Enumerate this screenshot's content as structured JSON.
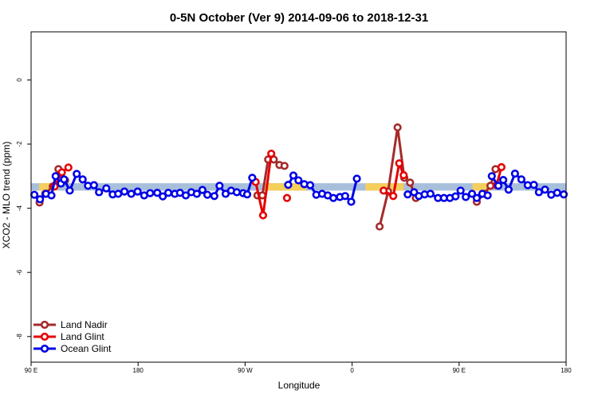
{
  "chart_data": {
    "type": "line",
    "title": "0-5N October (Ver 9)   2014-09-06 to 2018-12-31",
    "xlabel": "Longitude",
    "ylabel": "XCO2 - MLO trend (ppm)",
    "xlim": [
      -90,
      270
    ],
    "ylim": [
      -8.8,
      1.5
    ],
    "x_ticks": [
      {
        "value": -90,
        "label": "90 E"
      },
      {
        "value": -18,
        "label": "180"
      },
      {
        "value": 54,
        "label": "90 W"
      },
      {
        "value": 126,
        "label": "0"
      },
      {
        "value": 198,
        "label": "90 E"
      },
      {
        "value": 270,
        "label": "180"
      }
    ],
    "y_ticks": [
      {
        "value": 0,
        "label": "0"
      },
      {
        "value": -2,
        "label": "-2"
      },
      {
        "value": -4,
        "label": "-4"
      },
      {
        "value": -6,
        "label": "-6"
      },
      {
        "value": -8,
        "label": "-8"
      }
    ],
    "band": {
      "y_min": -3.45,
      "y_max": -3.22,
      "color": "#a8bfdc"
    },
    "highlights": [
      {
        "x_start": -84.6,
        "x_end": -72.3,
        "y_min": -3.45,
        "y_max": -3.22,
        "color": "#f5cf5c"
      },
      {
        "x_start": 67.2,
        "x_end": 95.1,
        "y_min": -3.45,
        "y_max": -3.22,
        "color": "#f5cf5c"
      },
      {
        "x_start": 135.0,
        "x_end": 160.7,
        "y_min": -3.45,
        "y_max": -3.22,
        "color": "#f5cf5c"
      },
      {
        "x_start": 207.0,
        "x_end": 219.0,
        "y_min": -3.45,
        "y_max": -3.22,
        "color": "#f5cf5c"
      }
    ],
    "series": [
      {
        "name": "Land Nadir",
        "color": "#a52a2a",
        "segments": [
          {
            "x": [
              -84.3,
              -80.5,
              -75.4,
              -71.6,
              -67.1
            ],
            "y": [
              -3.82,
              -3.55,
              -3.32,
              -2.78,
              -3.13
            ]
          },
          {
            "x": [
              62.3,
              65.6,
              69.5,
              73.3,
              77.1,
              80.5
            ],
            "y": [
              -3.6,
              -3.6,
              -2.48,
              -2.48,
              -2.65,
              -2.68
            ]
          },
          {
            "x": [
              144.5,
              150.2,
              156.6,
              161.1,
              165.0,
              168.9
            ],
            "y": [
              -4.57,
              -3.48,
              -1.48,
              -3.05,
              -3.2,
              -3.68
            ]
          },
          {
            "x": [
              209.9,
              214.9,
              219.1,
              222.5
            ],
            "y": [
              -3.8,
              -3.55,
              -3.3,
              -2.78
            ]
          }
        ]
      },
      {
        "name": "Land Glint",
        "color": "#e60000",
        "segments": [
          {
            "x": [
              -74.2,
              -69.3,
              -64.9
            ],
            "y": [
              -3.32,
              -2.88,
              -2.73
            ]
          },
          {
            "x": [
              61.1,
              66.1,
              71.6
            ],
            "y": [
              -3.18,
              -4.22,
              -2.3
            ]
          },
          {
            "x": [
              82.2
            ],
            "y": [
              -3.68
            ]
          },
          {
            "x": [
              147.2,
              153.7,
              157.7,
              160.7
            ],
            "y": [
              -3.45,
              -3.62,
              -2.6,
              -2.97
            ]
          },
          {
            "x": [
              223.2,
              226.5
            ],
            "y": [
              -3.28,
              -2.72
            ]
          }
        ]
      },
      {
        "name": "Ocean Glint",
        "color": "#0000e6",
        "segments": [
          {
            "x": [
              -87.8,
              -84.0,
              -80.0,
              -76.3,
              -73.5,
              -69.9,
              -67.8,
              -64.0,
              -59.3,
              -55.3,
              -51.7,
              -47.7,
              -44.3,
              -39.4,
              -35.1,
              -31.4,
              -27.2,
              -22.6,
              -18.3,
              -13.9,
              -9.9,
              -5.1,
              -1.4,
              2.3,
              6.7,
              10.2,
              14.1,
              17.8,
              21.5,
              25.3,
              28.6,
              33.3,
              36.8,
              40.9,
              44.6,
              48.4,
              52.7,
              55.4,
              58.8
            ],
            "y": [
              -3.58,
              -3.72,
              -3.55,
              -3.6,
              -3.0,
              -3.23,
              -3.1,
              -3.45,
              -2.93,
              -3.1,
              -3.3,
              -3.28,
              -3.5,
              -3.38,
              -3.57,
              -3.55,
              -3.48,
              -3.55,
              -3.48,
              -3.6,
              -3.53,
              -3.52,
              -3.63,
              -3.52,
              -3.55,
              -3.52,
              -3.6,
              -3.5,
              -3.55,
              -3.43,
              -3.58,
              -3.62,
              -3.3,
              -3.55,
              -3.45,
              -3.5,
              -3.53,
              -3.57,
              -3.05
            ]
          },
          {
            "x": [
              83.0,
              86.5,
              89.9,
              93.8,
              97.8,
              101.9,
              105.8,
              109.6,
              113.4,
              117.8,
              121.3,
              125.4,
              129.2,
              132.5
            ],
            "y": [
              -3.27,
              -2.98,
              -3.13,
              -3.25,
              -3.28,
              -3.58,
              -3.55,
              -3.6,
              -3.68,
              -3.65,
              -3.62,
              -3.8,
              -3.08,
              null
            ]
          },
          {
            "x": [
              163.4,
              167.7,
              170.9,
              174.8,
              178.7,
              183.8,
              187.8,
              191.8,
              195.6,
              199.0,
              202.5,
              206.7,
              209.9,
              213.6,
              217.2
            ],
            "y": [
              -3.57,
              -3.5,
              -3.62,
              -3.57,
              -3.55,
              -3.68,
              -3.68,
              -3.68,
              -3.63,
              -3.45,
              -3.65,
              -3.55,
              -3.68,
              -3.55,
              -3.6
            ]
          },
          {
            "x": [
              220.0,
              224.4,
              227.7,
              231.3,
              235.6,
              239.9,
              244.2,
              248.3,
              251.7,
              255.8,
              260.0,
              264.0,
              268.4
            ],
            "y": [
              -3.0,
              -3.3,
              -3.12,
              -3.42,
              -2.92,
              -3.1,
              -3.28,
              -3.27,
              -3.5,
              -3.42,
              -3.58,
              -3.52,
              -3.57
            ]
          }
        ]
      }
    ],
    "legend": {
      "position": "bottom-left"
    }
  }
}
